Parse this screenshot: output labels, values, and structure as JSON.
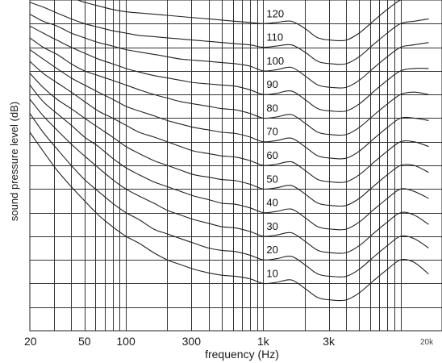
{
  "chart_data": {
    "type": "line",
    "title": "",
    "xlabel": "frequency (Hz)",
    "ylabel": "sound pressure level (dB)",
    "x_scale": "log",
    "xlim": [
      20,
      20000
    ],
    "ylim": [
      -10,
      130
    ],
    "grid": true,
    "x_tick_labels": [
      {
        "value": 20,
        "label": "20"
      },
      {
        "value": 50,
        "label": "50"
      },
      {
        "value": 100,
        "label": "100"
      },
      {
        "value": 300,
        "label": "300"
      },
      {
        "value": 1000,
        "label": "1k"
      },
      {
        "value": 3000,
        "label": "3k"
      }
    ],
    "corner_label": "20k",
    "x": [
      20,
      25,
      31.5,
      40,
      50,
      63,
      80,
      100,
      125,
      160,
      200,
      250,
      315,
      400,
      500,
      630,
      800,
      1000,
      1250,
      1600,
      2000,
      2500,
      3150,
      4000,
      5000,
      6300,
      8000,
      10000,
      12500,
      16000
    ],
    "series": [
      {
        "name": "10",
        "values": [
          74,
          66,
          58,
          51,
          45,
          39,
          34,
          30,
          27,
          23,
          20,
          18,
          16,
          14.5,
          13.5,
          13,
          12,
          10,
          10.5,
          11.5,
          8,
          4,
          3,
          3,
          6,
          11,
          16,
          20,
          19,
          14
        ]
      },
      {
        "name": "20",
        "values": [
          82,
          74,
          67,
          60,
          54,
          49,
          44,
          40,
          37,
          33,
          31,
          29,
          27,
          25,
          24,
          23.5,
          22,
          20,
          20.5,
          21.5,
          18,
          14,
          13,
          13,
          16,
          21,
          26,
          30,
          29,
          25
        ]
      },
      {
        "name": "30",
        "values": [
          88,
          81,
          75,
          69,
          64,
          59,
          54,
          50,
          47,
          44,
          41,
          39,
          37,
          35.5,
          34,
          33.5,
          32,
          30,
          30.5,
          31.5,
          28,
          24,
          23,
          23,
          26,
          31,
          36,
          40,
          39,
          35
        ]
      },
      {
        "name": "40",
        "values": [
          94,
          87,
          82,
          77,
          72,
          68,
          63,
          59,
          56,
          53,
          51,
          49,
          47,
          45.5,
          44,
          43.5,
          42,
          40,
          40.5,
          41.5,
          38,
          34,
          33,
          33,
          36,
          41,
          46,
          50,
          49,
          46
        ]
      },
      {
        "name": "50",
        "values": [
          99,
          93,
          88,
          84,
          80,
          76,
          72,
          68,
          65,
          62,
          60,
          58,
          56,
          55,
          54,
          53.5,
          52,
          50,
          50.5,
          51.5,
          48,
          44,
          43,
          43,
          46,
          51,
          56,
          60,
          60,
          57
        ]
      },
      {
        "name": "60",
        "values": [
          104,
          99,
          95,
          91,
          87,
          83,
          80,
          77,
          74,
          72,
          70,
          68,
          66,
          65,
          64,
          63.5,
          62,
          60,
          60.5,
          61.5,
          58,
          54,
          53,
          53,
          56,
          61,
          66,
          70,
          70,
          68
        ]
      },
      {
        "name": "70",
        "values": [
          109,
          105,
          101,
          97,
          94,
          91,
          88,
          85,
          83,
          81,
          79,
          77.5,
          76,
          75,
          74,
          73.5,
          72,
          70,
          70.5,
          71.5,
          68,
          64,
          63,
          63,
          66,
          71,
          76,
          80,
          80,
          79
        ]
      },
      {
        "name": "80",
        "values": [
          114,
          110,
          107,
          103,
          100,
          98,
          96,
          94,
          92,
          90,
          88.5,
          87,
          86,
          85,
          84,
          83.5,
          82,
          80,
          80.5,
          81.5,
          78,
          74,
          73,
          73,
          76,
          81,
          86,
          90,
          91,
          90
        ]
      },
      {
        "name": "90",
        "values": [
          119,
          116,
          113,
          110,
          107.5,
          105,
          103,
          101,
          99.5,
          98,
          97,
          96,
          95,
          94.5,
          94,
          93.5,
          92,
          90,
          90.5,
          91.5,
          88,
          84,
          83,
          83,
          86,
          91,
          96,
          100,
          101,
          101
        ]
      },
      {
        "name": "100",
        "values": [
          124,
          121,
          119,
          116,
          114,
          112,
          110.5,
          109,
          108,
          107,
          106,
          105,
          104.5,
          104,
          103.5,
          103,
          102,
          100,
          100.5,
          101.5,
          98,
          94,
          93,
          93,
          96,
          101,
          106,
          110,
          111,
          112
        ]
      },
      {
        "name": "110",
        "values": [
          129,
          127,
          124.5,
          122,
          120,
          118.5,
          117,
          116,
          115,
          114.5,
          114,
          113.5,
          113,
          112.5,
          112,
          111.5,
          111,
          110,
          110.5,
          111,
          108,
          104,
          103,
          103,
          106,
          111,
          116,
          120,
          121,
          122
        ]
      },
      {
        "name": "120",
        "values": [
          137,
          135,
          133,
          131,
          129,
          127.5,
          126,
          125,
          124.5,
          124,
          123.5,
          123,
          122.5,
          122,
          121.5,
          121,
          120.5,
          120,
          120.5,
          121,
          118,
          114,
          113,
          113,
          116,
          121,
          126,
          130,
          131,
          132
        ]
      }
    ]
  }
}
